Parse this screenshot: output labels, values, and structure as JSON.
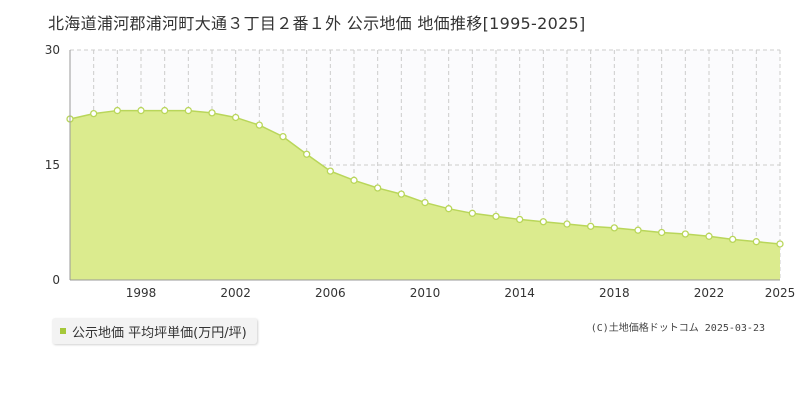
{
  "title": "北海道浦河郡浦河町大通３丁目２番１外 公示地価 地価推移[1995-2025]",
  "legend": {
    "label": "公示地価 平均坪単価(万円/坪)"
  },
  "credit": "(C)土地価格ドットコム 2025-03-23",
  "colors": {
    "fill": "#dbeb8e",
    "line": "#b9d65a",
    "marker_stroke": "#b9d65a",
    "legend": "#a5c83a",
    "grid": "#cccccc"
  },
  "chart_data": {
    "type": "area",
    "title": "北海道浦河郡浦河町大通３丁目２番１外 公示地価 地価推移[1995-2025]",
    "xlabel": "",
    "ylabel": "",
    "xlim": [
      1995,
      2025
    ],
    "ylim": [
      0,
      30
    ],
    "y_ticks": [
      0,
      15,
      30
    ],
    "x_ticks": [
      1998,
      2002,
      2006,
      2010,
      2014,
      2018,
      2022,
      2025
    ],
    "grid": true,
    "legend_position": "bottom-left",
    "series": [
      {
        "name": "公示地価 平均坪単価(万円/坪)",
        "x": [
          1995,
          1996,
          1997,
          1998,
          1999,
          2000,
          2001,
          2002,
          2003,
          2004,
          2005,
          2006,
          2007,
          2008,
          2009,
          2010,
          2011,
          2012,
          2013,
          2014,
          2015,
          2016,
          2017,
          2018,
          2019,
          2020,
          2021,
          2022,
          2023,
          2024,
          2025
        ],
        "values": [
          21.0,
          21.7,
          22.1,
          22.1,
          22.1,
          22.1,
          21.8,
          21.2,
          20.2,
          18.7,
          16.4,
          14.2,
          13.0,
          12.0,
          11.2,
          10.1,
          9.3,
          8.7,
          8.3,
          7.9,
          7.6,
          7.3,
          7.0,
          6.8,
          6.5,
          6.2,
          6.0,
          5.7,
          5.3,
          5.0,
          4.7
        ]
      }
    ]
  }
}
